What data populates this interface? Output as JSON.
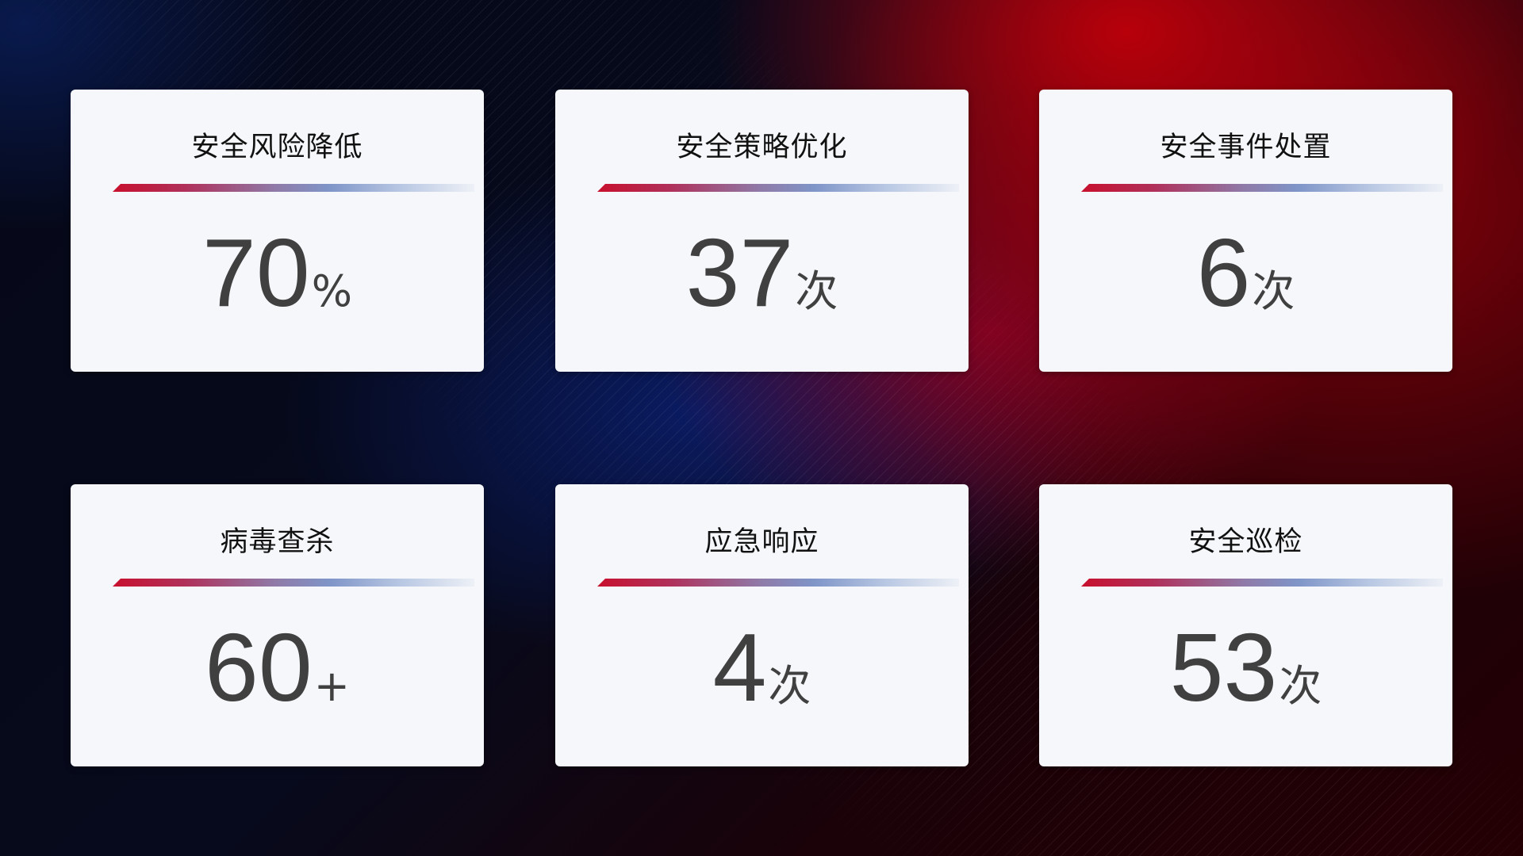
{
  "cards": [
    {
      "title": "安全风险降低",
      "value": "70",
      "unit": "%"
    },
    {
      "title": "安全策略优化",
      "value": "37",
      "unit": "次"
    },
    {
      "title": "安全事件处置",
      "value": "6",
      "unit": "次"
    },
    {
      "title": "病毒查杀",
      "value": "60",
      "unit": "+"
    },
    {
      "title": "应急响应",
      "value": "4",
      "unit": "次"
    },
    {
      "title": "安全巡检",
      "value": "53",
      "unit": "次"
    }
  ],
  "colors": {
    "accent_red": "#c8102e",
    "accent_blue": "#7f95c8",
    "card_bg": "#f5f7fb",
    "value_text": "#404040"
  }
}
